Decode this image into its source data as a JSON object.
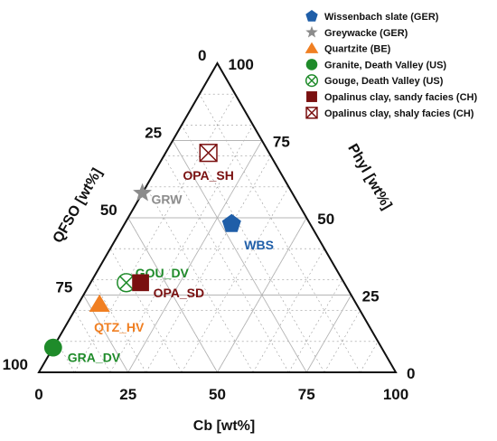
{
  "chart_data": {
    "type": "ternary",
    "title": "",
    "axes": {
      "bottom": {
        "label": "Cb [wt%]",
        "ticks": [
          "0",
          "25",
          "50",
          "75",
          "100"
        ]
      },
      "left": {
        "label": "QFSO [wt%]",
        "ticks": [
          "0",
          "25",
          "50",
          "75",
          "100"
        ]
      },
      "right": {
        "label": "Phyl [wt%]",
        "ticks": [
          "0",
          "25",
          "50",
          "75",
          "100"
        ]
      }
    },
    "grid": true,
    "legend_position": "top-right",
    "series": [
      {
        "name": "Wissenbach slate (GER)",
        "label": "WBS",
        "marker": "pentagon",
        "color": "#1f5ea8",
        "label_color": "#1f5ea8",
        "cb": 30,
        "qfso": 22,
        "phyl": 48
      },
      {
        "name": "Greywacke (GER)",
        "label": "GRW",
        "marker": "star",
        "color": "#8c8c8c",
        "label_color": "#8c8c8c",
        "cb": 0,
        "qfso": 42,
        "phyl": 58
      },
      {
        "name": "Quartzite (BE)",
        "label": "QTZ_HV",
        "marker": "triangle",
        "color": "#f07f22",
        "label_color": "#f07f22",
        "cb": 6,
        "qfso": 72,
        "phyl": 22
      },
      {
        "name": "Granite, Death Valley (US)",
        "label": "GRA_DV",
        "marker": "circle",
        "color": "#1f8b2a",
        "label_color": "#1f8b2a",
        "cb": 0,
        "qfso": 92,
        "phyl": 8
      },
      {
        "name": "Gouge, Death Valley (US)",
        "label": "GOU_DV",
        "marker": "circle-x",
        "color": "#1f8b2a",
        "label_color": "#1f8b2a",
        "cb": 10,
        "qfso": 61,
        "phyl": 29
      },
      {
        "name": "Opalinus clay, sandy facies (CH)",
        "label": "OPA_SD",
        "marker": "square",
        "color": "#7a1010",
        "label_color": "#7a1010",
        "cb": 14,
        "qfso": 57,
        "phyl": 29
      },
      {
        "name": "Opalinus clay, shaly facies (CH)",
        "label": "OPA_SH",
        "marker": "square-x",
        "color": "#7a1010",
        "label_color": "#7a1010",
        "cb": 12,
        "qfso": 17,
        "phyl": 71
      }
    ]
  }
}
